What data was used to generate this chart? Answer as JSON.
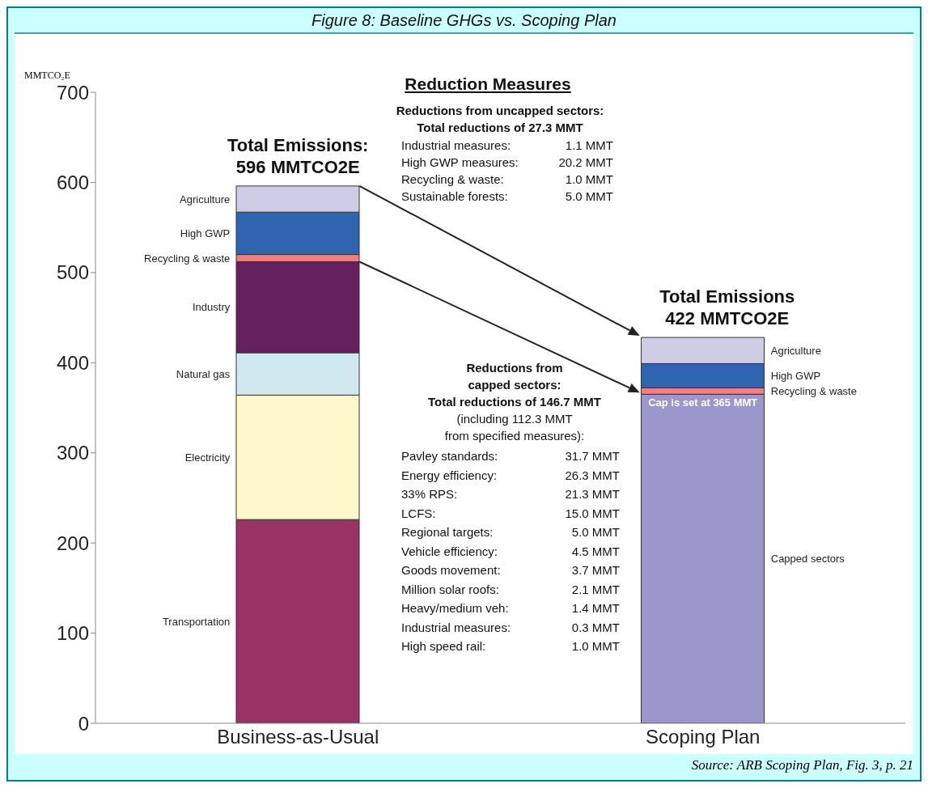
{
  "chart_data": {
    "type": "bar",
    "title": "Figure 8: Baseline GHGs vs. Scoping Plan",
    "ylabel": "MMTCO₂E",
    "categories": [
      "Business-as-Usual",
      "Scoping Plan"
    ],
    "stacked": true,
    "ylim": [
      0,
      700
    ],
    "yticks": [
      0,
      100,
      200,
      300,
      400,
      500,
      600,
      700
    ],
    "series": [
      {
        "name": "Transportation",
        "color": "#993366",
        "values": [
          226,
          null
        ]
      },
      {
        "name": "Electricity",
        "color": "#fff8cc",
        "values": [
          138,
          null
        ]
      },
      {
        "name": "Natural gas",
        "color": "#cfe9ef",
        "values": [
          47,
          null
        ]
      },
      {
        "name": "Industry",
        "color": "#652060",
        "values": [
          101,
          null
        ]
      },
      {
        "name": "Capped sectors",
        "color": "#9b97cc",
        "values": [
          null,
          365
        ]
      },
      {
        "name": "Recycling & waste",
        "color": "#f08080",
        "values": [
          8,
          7
        ]
      },
      {
        "name": "High GWP",
        "color": "#2f64b0",
        "values": [
          47,
          27
        ]
      },
      {
        "name": "Agriculture",
        "color": "#cfcce6",
        "values": [
          29,
          29
        ]
      }
    ],
    "annotations": [
      {
        "text": "Total Emissions:\n596 MMTCO2E",
        "x": "Business-as-Usual",
        "y": 596
      },
      {
        "text": "Total Emissions\n422 MMTCO2E",
        "x": "Scoping Plan",
        "y": 428
      },
      {
        "text": "Cap is set at 365 MMT",
        "x": "Scoping Plan",
        "y": 365
      },
      "Reduction Measures",
      "Reductions from uncapped sectors:\nTotal reductions of 27.3 MMT",
      "Industrial measures:\t1.1 MMT\nHigh GWP measures:\t20.2 MMT\nRecycling & waste:\t1.0 MMT\nSustainable forests:\t5.0 MMT",
      "Reductions from\ncapped sectors:\nTotal reductions of 146.7 MMT",
      "(including 112.3 MMT\nfrom specified measures):",
      "Pavley standards:\t31.7 MMT\nEnergy efficiency:\t26.3 MMT\n33% RPS:\t21.3 MMT\nLCFS:\t15.0 MMT\nRegional targets:\t5.0 MMT\nVehicle efficiency:\t4.5 MMT\nGoods movement:\t3.7 MMT\nMillion solar roofs:\t2.1 MMT\nHeavy/medium veh:\t1.4 MMT\nIndustrial measures:\t0.3 MMT\nHigh speed rail:\t1.0 MMT",
      "Source: ARB Scoping Plan, Fig. 3, p. 21"
    ]
  }
}
